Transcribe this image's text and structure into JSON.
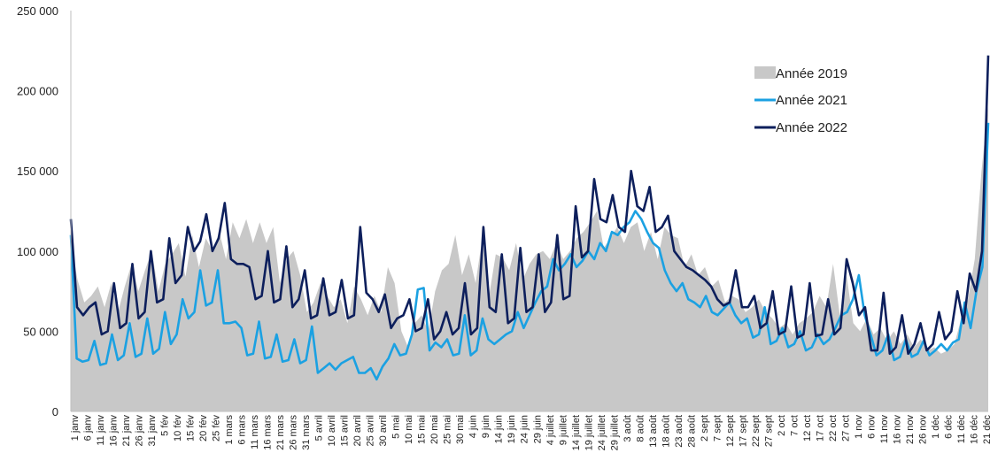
{
  "chart_data": {
    "type": "line",
    "title": "",
    "xlabel": "",
    "ylabel": "",
    "ylim": [
      0,
      250000
    ],
    "y_ticks": [
      0,
      50000,
      100000,
      150000,
      200000,
      250000
    ],
    "y_tick_labels": [
      "0",
      "50 000",
      "100 000",
      "150 000",
      "200 000",
      "250 000"
    ],
    "grid": false,
    "legend_position": "top-right",
    "x_tick_labels": [
      "1 janv",
      "6 janv",
      "11 janv",
      "16 janv",
      "21 janv",
      "26 janv",
      "31 janv",
      "5 fév",
      "10 fév",
      "15 fév",
      "20 fév",
      "25 fév",
      "1 mars",
      "6 mars",
      "11 mars",
      "16 mars",
      "21 mars",
      "26 mars",
      "31 mars",
      "5 avril",
      "10 avril",
      "15 avril",
      "20 avril",
      "25 avril",
      "30 avril",
      "5 mai",
      "10 mai",
      "15 mai",
      "20 mai",
      "25 mai",
      "30 mai",
      "4 juin",
      "9 juin",
      "14 juin",
      "19 juin",
      "24 juin",
      "29 juin",
      "4 juillet",
      "9 juillet",
      "14 juillet",
      "19 juillet",
      "24 juillet",
      "29 juillet",
      "3 août",
      "8 août",
      "13 août",
      "18 août",
      "23 août",
      "28 août",
      "2 sept",
      "7 sept",
      "12 sept",
      "17 sept",
      "22 sept",
      "27 sept",
      "2 oct",
      "7 oct",
      "12 oct",
      "17 oct",
      "22 oct",
      "27 oct",
      "1 nov",
      "6 nov",
      "11 nov",
      "16 nov",
      "21 nov",
      "26 nov",
      "1 déc",
      "6 déc",
      "11 déc",
      "16 déc",
      "21 déc"
    ],
    "series": [
      {
        "name": "Année 2019",
        "style": "area",
        "color": "#c8c8c8",
        "values": [
          105000,
          82000,
          68000,
          72000,
          78000,
          65000,
          80000,
          62000,
          78000,
          92000,
          75000,
          88000,
          100000,
          75000,
          92000,
          98000,
          105000,
          84000,
          110000,
          90000,
          108000,
          100000,
          112000,
          95000,
          118000,
          108000,
          120000,
          105000,
          118000,
          105000,
          115000,
          80000,
          95000,
          100000,
          85000,
          62000,
          68000,
          80000,
          72000,
          65000,
          70000,
          55000,
          78000,
          70000,
          60000,
          72000,
          62000,
          90000,
          80000,
          50000,
          40000,
          55000,
          60000,
          50000,
          75000,
          88000,
          92000,
          110000,
          85000,
          98000,
          80000,
          108000,
          72000,
          98000,
          96000,
          88000,
          105000,
          82000,
          92000,
          98000,
          100000,
          95000,
          105000,
          95000,
          100000,
          108000,
          112000,
          118000,
          125000,
          102000,
          108000,
          115000,
          105000,
          115000,
          118000,
          100000,
          112000,
          95000,
          115000,
          110000,
          108000,
          90000,
          98000,
          85000,
          90000,
          78000,
          82000,
          68000,
          72000,
          70000,
          62000,
          65000,
          70000,
          62000,
          58000,
          52000,
          55000,
          48000,
          55000,
          58000,
          62000,
          72000,
          65000,
          92000,
          60000,
          85000,
          55000,
          50000,
          58000,
          48000,
          52000,
          44000,
          50000,
          42000,
          48000,
          40000,
          45000,
          38000,
          40000,
          36000,
          38000,
          42000,
          58000,
          70000,
          95000,
          150000,
          190000
        ]
      },
      {
        "name": "Année 2021",
        "style": "line",
        "color": "#1ba1e2",
        "values": [
          110000,
          33000,
          31000,
          32000,
          44000,
          29000,
          30000,
          48000,
          32000,
          35000,
          55000,
          34000,
          36000,
          58000,
          36000,
          39000,
          62000,
          42000,
          48000,
          70000,
          58000,
          62000,
          88000,
          66000,
          68000,
          88000,
          55000,
          55000,
          56000,
          52000,
          35000,
          36000,
          56000,
          33000,
          34000,
          48000,
          31000,
          32000,
          45000,
          30000,
          32000,
          53000,
          24000,
          27000,
          30000,
          26000,
          30000,
          32000,
          34000,
          24000,
          24000,
          27000,
          20000,
          28000,
          33000,
          42000,
          35000,
          36000,
          48000,
          76000,
          77000,
          38000,
          43000,
          40000,
          45000,
          35000,
          36000,
          60000,
          35000,
          38000,
          58000,
          45000,
          42000,
          45000,
          48000,
          50000,
          62000,
          52000,
          60000,
          68000,
          75000,
          78000,
          95000,
          88000,
          92000,
          98000,
          90000,
          94000,
          100000,
          95000,
          105000,
          100000,
          112000,
          110000,
          115000,
          118000,
          125000,
          120000,
          112000,
          105000,
          102000,
          88000,
          80000,
          75000,
          80000,
          70000,
          68000,
          65000,
          72000,
          62000,
          60000,
          64000,
          68000,
          60000,
          55000,
          58000,
          46000,
          48000,
          65000,
          42000,
          44000,
          52000,
          40000,
          42000,
          50000,
          38000,
          40000,
          48000,
          42000,
          45000,
          52000,
          60000,
          62000,
          70000,
          85000,
          60000,
          48000,
          35000,
          38000,
          48000,
          32000,
          34000,
          45000,
          34000,
          36000,
          44000,
          35000,
          38000,
          42000,
          38000,
          43000,
          45000,
          68000,
          52000,
          75000,
          90000,
          180000
        ]
      },
      {
        "name": "Année 2022",
        "style": "line",
        "color": "#0d1f5c",
        "values": [
          120000,
          65000,
          60000,
          65000,
          68000,
          48000,
          50000,
          80000,
          52000,
          55000,
          92000,
          58000,
          62000,
          100000,
          68000,
          70000,
          108000,
          80000,
          85000,
          115000,
          100000,
          106000,
          123000,
          100000,
          108000,
          130000,
          95000,
          92000,
          92000,
          90000,
          70000,
          72000,
          100000,
          68000,
          70000,
          103000,
          65000,
          70000,
          88000,
          58000,
          60000,
          83000,
          60000,
          62000,
          82000,
          58000,
          60000,
          115000,
          74000,
          70000,
          62000,
          73000,
          52000,
          58000,
          60000,
          70000,
          50000,
          52000,
          70000,
          45000,
          50000,
          62000,
          48000,
          52000,
          80000,
          48000,
          52000,
          115000,
          65000,
          62000,
          98000,
          55000,
          58000,
          102000,
          62000,
          65000,
          98000,
          62000,
          68000,
          110000,
          70000,
          72000,
          128000,
          96000,
          100000,
          145000,
          120000,
          118000,
          135000,
          115000,
          112000,
          150000,
          128000,
          125000,
          140000,
          112000,
          115000,
          122000,
          100000,
          95000,
          90000,
          88000,
          85000,
          82000,
          78000,
          70000,
          66000,
          68000,
          88000,
          65000,
          65000,
          72000,
          52000,
          55000,
          75000,
          48000,
          50000,
          78000,
          46000,
          48000,
          80000,
          47000,
          48000,
          70000,
          48000,
          52000,
          95000,
          80000,
          60000,
          65000,
          38000,
          38000,
          74000,
          36000,
          40000,
          60000,
          36000,
          42000,
          55000,
          38000,
          42000,
          62000,
          45000,
          50000,
          75000,
          55000,
          86000,
          75000,
          100000,
          222000
        ]
      }
    ]
  }
}
